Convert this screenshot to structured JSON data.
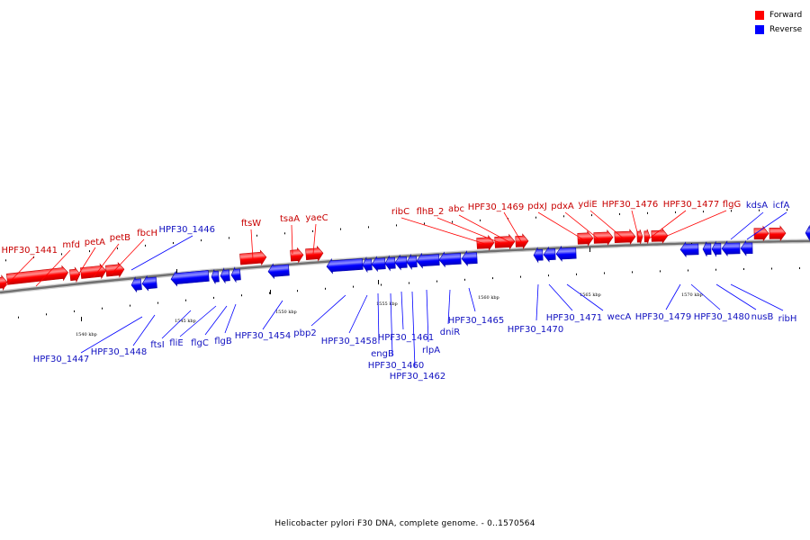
{
  "caption": "Helicobacter pylori F30 DNA, complete genome. - 0..1570564",
  "colors": {
    "forward": "#ff0000",
    "reverse": "#0000ff",
    "backbone": "#808080"
  },
  "legend": [
    {
      "label": "Forward",
      "color": "#ff0000"
    },
    {
      "label": "Reverse",
      "color": "#0000ff"
    }
  ],
  "scale_labels": [
    "1540 kbp",
    "1545 kbp",
    "1550 kbp",
    "1555 kbp",
    "1560 kbp",
    "1565 kbp",
    "1570 kbp"
  ],
  "forward_genes": [
    "HPF30_1441",
    "mfd",
    "petA",
    "petB",
    "fbcH",
    "ftsW",
    "tsaA",
    "yaeC",
    "ribC",
    "flhB_2",
    "abc",
    "HPF30_1469",
    "pdxJ",
    "pdxA",
    "ydiE",
    "HPF30_1476",
    "HPF30_1477",
    "flgG"
  ],
  "reverse_genes": [
    "HPF30_1446",
    "HPF30_1447",
    "HPF30_1448",
    "ftsI",
    "fliE",
    "flgC",
    "flgB",
    "HPF30_1454",
    "pbp2",
    "HPF30_1458",
    "engB",
    "HPF30_1460",
    "HPF30_1461",
    "HPF30_1462",
    "rlpA",
    "dniR",
    "HPF30_1465",
    "HPF30_1470",
    "HPF30_1471",
    "wecA",
    "HPF30_1479",
    "HPF30_1480",
    "nusB",
    "ribH",
    "kdsA",
    "icfA"
  ]
}
